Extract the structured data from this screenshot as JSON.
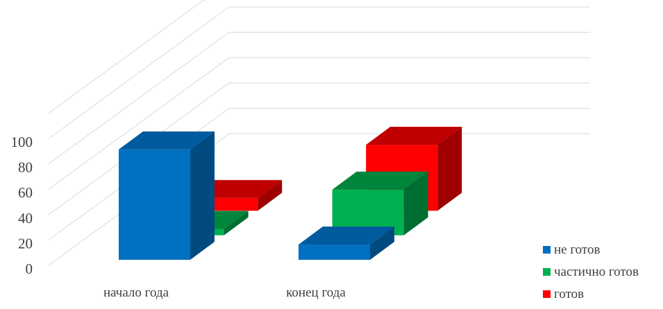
{
  "chart_data": {
    "type": "bar",
    "title": "",
    "xlabel": "",
    "ylabel": "",
    "categories": [
      "начало года",
      "конец года"
    ],
    "y_ticks": [
      "0",
      "20",
      "40",
      "60",
      "80",
      "100"
    ],
    "ylim": [
      0,
      100
    ],
    "series": [
      {
        "name": "не готов",
        "values": [
          87,
          12
        ],
        "color": "#0070C0",
        "top": "#005A9E",
        "side": "#004A80"
      },
      {
        "name": "частично готов",
        "values": [
          5,
          36
        ],
        "color": "#00B050",
        "top": "#00853C",
        "side": "#006E32"
      },
      {
        "name": "готов",
        "values": [
          10,
          52
        ],
        "color": "#FF0000",
        "top": "#C00000",
        "side": "#A00000"
      }
    ],
    "legend_position": "bottom-right",
    "grid": true,
    "projection": "3d"
  }
}
